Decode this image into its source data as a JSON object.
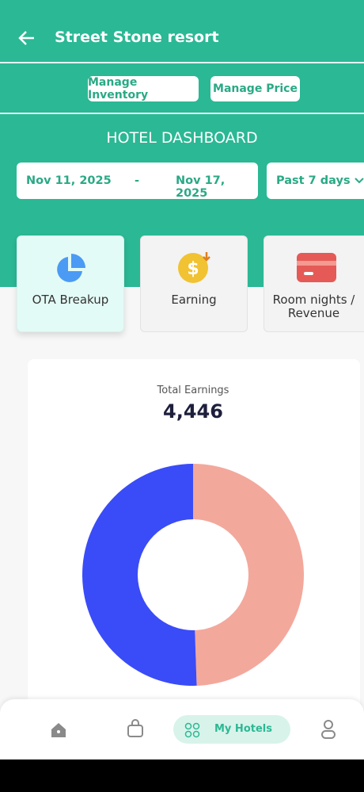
{
  "header": {
    "title": "Street Stone resort"
  },
  "buttons": [
    "Manage Inventory",
    "Manage Price"
  ],
  "dashboard": {
    "title": "HOTEL DASHBOARD",
    "start_date": "Nov 11, 2025",
    "separator": "-",
    "end_date": "Nov 17, 2025",
    "range": "Past 7 days"
  },
  "tabs": [
    "OTA Breakup",
    "Earning",
    "Room nights / Revenue"
  ],
  "chart_data": {
    "type": "donut",
    "title": "Total Earnings",
    "total": "4,446",
    "values": [
      2200,
      2246
    ],
    "colors": [
      "#f3a89c",
      "#3a4cf7"
    ]
  },
  "nav": {
    "active": "My Hotels"
  }
}
